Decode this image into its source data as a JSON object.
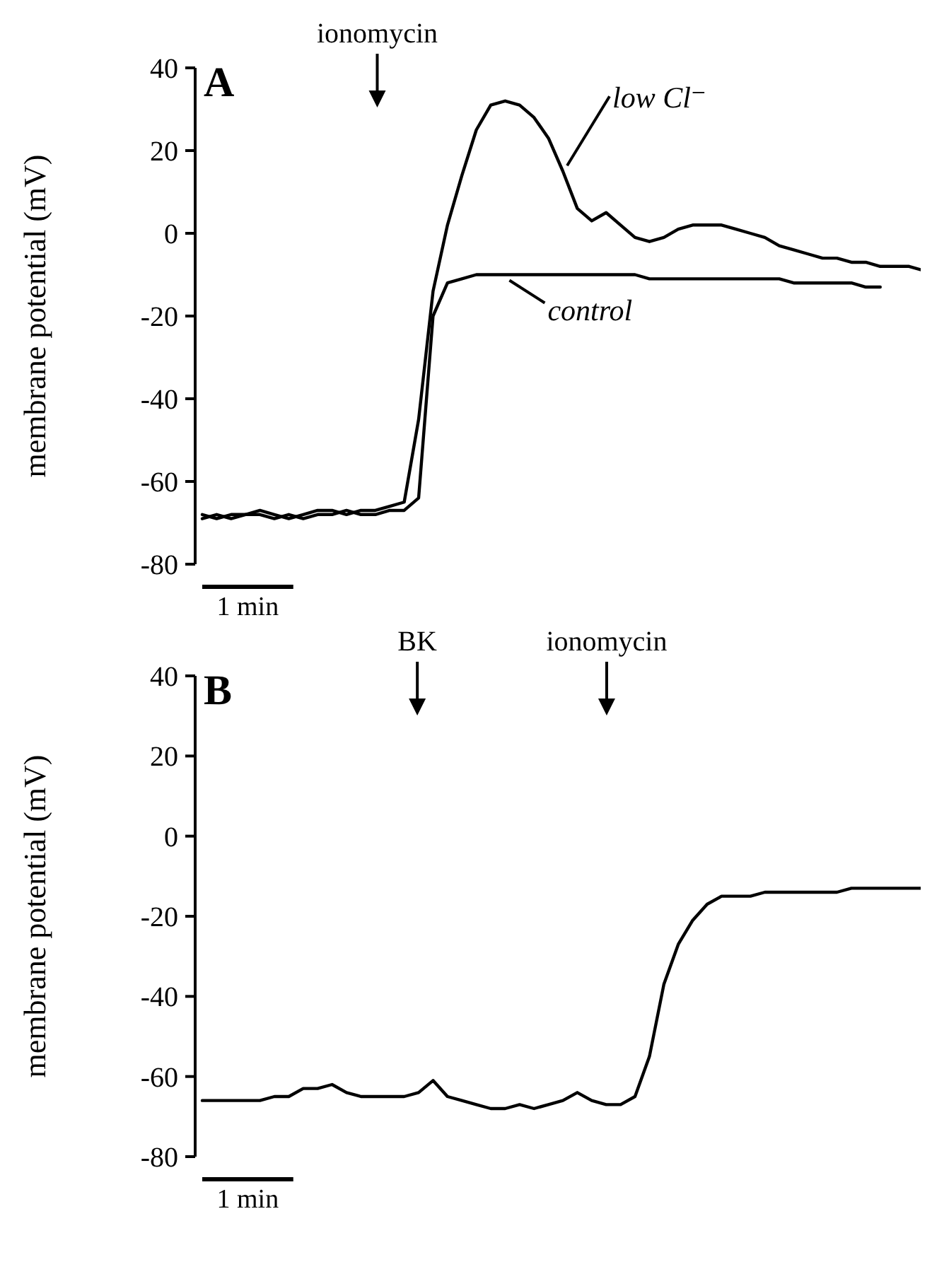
{
  "chart_data": [
    {
      "type": "line",
      "title": "A",
      "ylabel": "membrane potential (mV)",
      "ylim": [
        -80,
        40
      ],
      "yticks": [
        -80,
        -60,
        -40,
        -20,
        0,
        20,
        40
      ],
      "tick_labels": "y",
      "grid": false,
      "line_style": "solid",
      "categories": [
        null,
        null,
        null,
        null,
        null,
        null,
        null,
        null,
        null,
        null,
        null,
        null,
        null,
        null,
        null,
        null,
        null,
        null,
        null,
        null,
        null,
        null,
        null,
        null,
        null,
        null,
        null,
        null,
        null,
        null,
        null,
        null,
        null,
        null,
        null,
        null,
        null,
        null,
        null,
        null,
        null,
        null,
        null,
        null,
        null,
        null,
        null,
        null,
        null,
        null,
        null
      ],
      "series": [
        {
          "name": "low Cl⁻",
          "color": "#000000",
          "values": [
            -68,
            -69,
            -68,
            -68,
            -67,
            -68,
            -69,
            -68,
            -67,
            -67,
            -68,
            -67,
            -67,
            -66,
            -65,
            -45,
            -14,
            2,
            14,
            25,
            31,
            32,
            31,
            28,
            23,
            15,
            6,
            3,
            5,
            2,
            -1,
            -2,
            -1,
            1,
            2,
            2,
            2,
            1,
            0,
            -1,
            -3,
            -4,
            -5,
            -6,
            -6,
            -7,
            -7,
            -8,
            -8,
            -8,
            -9
          ]
        },
        {
          "name": "control",
          "color": "#000000",
          "values": [
            -69,
            -68,
            -69,
            -68,
            -68,
            -69,
            -68,
            -69,
            -68,
            -68,
            -67,
            -68,
            -68,
            -67,
            -67,
            -64,
            -20,
            -12,
            -11,
            -10,
            -10,
            -10,
            -10,
            -10,
            -10,
            -10,
            -10,
            -10,
            -10,
            -10,
            -10,
            -11,
            -11,
            -11,
            -11,
            -11,
            -11,
            -11,
            -11,
            -11,
            -11,
            -12,
            -12,
            -12,
            -12,
            -12,
            -13,
            -13,
            null,
            null,
            null
          ]
        }
      ],
      "annotations": [
        "ionomycin",
        "1 min"
      ]
    },
    {
      "type": "line",
      "title": "B",
      "ylabel": "membrane potential (mV)",
      "ylim": [
        -80,
        40
      ],
      "yticks": [
        -80,
        -60,
        -40,
        -20,
        0,
        20,
        40
      ],
      "tick_labels": "y",
      "grid": false,
      "line_style": "solid",
      "categories": [
        null,
        null,
        null,
        null,
        null,
        null,
        null,
        null,
        null,
        null,
        null,
        null,
        null,
        null,
        null,
        null,
        null,
        null,
        null,
        null,
        null,
        null,
        null,
        null,
        null,
        null,
        null,
        null,
        null,
        null,
        null,
        null,
        null,
        null,
        null,
        null,
        null,
        null,
        null,
        null,
        null,
        null,
        null,
        null,
        null,
        null,
        null,
        null,
        null,
        null,
        null
      ],
      "series": [
        {
          "color": "#000000",
          "values": [
            -66,
            -66,
            -66,
            -66,
            -66,
            -65,
            -65,
            -63,
            -63,
            -62,
            -64,
            -65,
            -65,
            -65,
            -65,
            -64,
            -61,
            -65,
            -66,
            -67,
            -68,
            -68,
            -67,
            -68,
            -67,
            -66,
            -64,
            -66,
            -67,
            -67,
            -65,
            -55,
            -37,
            -27,
            -21,
            -17,
            -15,
            -15,
            -15,
            -14,
            -14,
            -14,
            -14,
            -14,
            -14,
            -13,
            -13,
            -13,
            -13,
            -13,
            -13
          ]
        }
      ],
      "annotations": [
        "BK",
        "ionomycin",
        "1 min"
      ]
    }
  ]
}
